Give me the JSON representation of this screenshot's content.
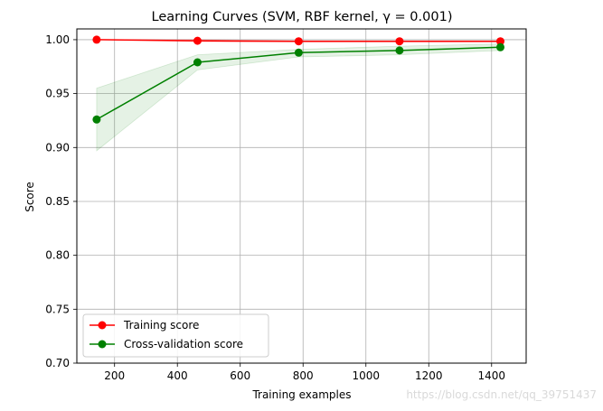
{
  "chart_data": {
    "type": "line",
    "title": "Learning Curves (SVM, RBF kernel, γ = 0.001)",
    "xlabel": "Training examples",
    "ylabel": "Score",
    "xlim": [
      80,
      1510
    ],
    "ylim": [
      0.7,
      1.01
    ],
    "xticks": [
      200,
      400,
      600,
      800,
      1000,
      1200,
      1400
    ],
    "xtick_labels": [
      "200",
      "400",
      "600",
      "800",
      "1000",
      "1200",
      "1400"
    ],
    "yticks": [
      0.7,
      0.75,
      0.8,
      0.85,
      0.9,
      0.95,
      1.0
    ],
    "ytick_labels": [
      "0.70",
      "0.75",
      "0.80",
      "0.85",
      "0.90",
      "0.95",
      "1.00"
    ],
    "grid": true,
    "legend_position": "lower-left",
    "x": [
      143,
      464,
      786,
      1107,
      1428
    ],
    "series": [
      {
        "name": "Training score",
        "color": "#ff0000",
        "marker": "circle",
        "values": [
          1.0,
          0.999,
          0.9985,
          0.9985,
          0.9985
        ],
        "band_lower": [
          1.0,
          0.998,
          0.998,
          0.998,
          0.998
        ],
        "band_upper": [
          1.0,
          1.0,
          0.999,
          0.999,
          0.999
        ],
        "band_color": "#ff0000"
      },
      {
        "name": "Cross-validation score",
        "color": "#008000",
        "marker": "circle",
        "values": [
          0.926,
          0.979,
          0.988,
          0.99,
          0.993
        ],
        "band_lower": [
          0.897,
          0.972,
          0.984,
          0.986,
          0.99
        ],
        "band_upper": [
          0.955,
          0.986,
          0.991,
          0.994,
          0.996
        ],
        "band_color": "#008000"
      }
    ]
  },
  "watermark": "https://blog.csdn.net/qq_39751437"
}
